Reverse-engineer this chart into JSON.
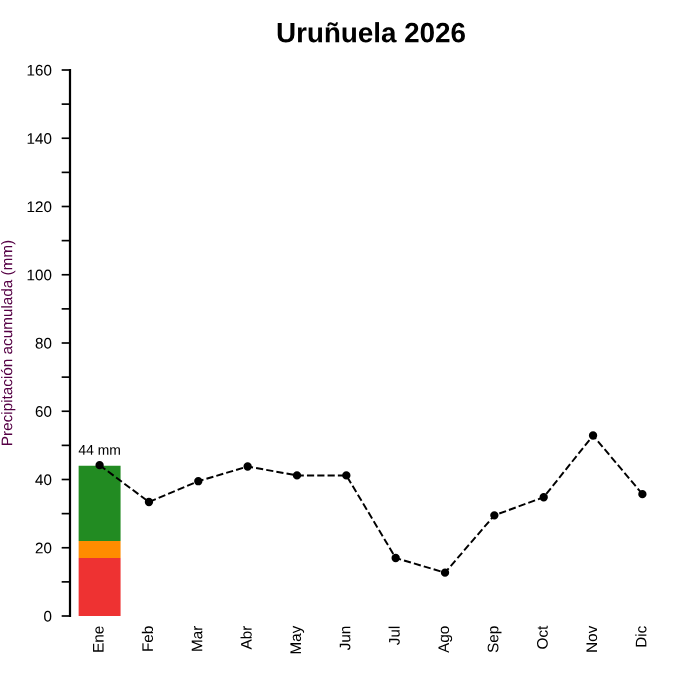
{
  "chart_data": {
    "type": "bar",
    "title": "Uruñuela 2026",
    "ylabel": "Precipitación acumulada (mm)",
    "categories": [
      "Ene",
      "Feb",
      "Mar",
      "Abr",
      "May",
      "Jun",
      "Jul",
      "Ago",
      "Sep",
      "Oct",
      "Nov",
      "Dic"
    ],
    "stacked": true,
    "series": [
      {
        "color": "#ee3232",
        "values": [
          17,
          null,
          null,
          null,
          null,
          null,
          null,
          null,
          null,
          null,
          null,
          null
        ]
      },
      {
        "color": "#ff8c00",
        "values": [
          5,
          null,
          null,
          null,
          null,
          null,
          null,
          null,
          null,
          null,
          null,
          null
        ]
      },
      {
        "color": "#228b22",
        "values": [
          22,
          null,
          null,
          null,
          null,
          null,
          null,
          null,
          null,
          null,
          null,
          null
        ]
      },
      {
        "type": "line",
        "color": "#000000",
        "marker": "circle",
        "line_style": "dashed",
        "values": [
          44.2,
          33.4,
          39.5,
          43.8,
          41.2,
          41.2,
          17.0,
          12.7,
          29.5,
          34.8,
          52.9,
          35.7
        ]
      }
    ],
    "annotations": [
      {
        "text": "44 mm",
        "x": "Ene",
        "y": 44
      }
    ],
    "ylim": [
      0,
      160
    ],
    "yticks": [
      0,
      {
        "value": 10,
        "label": null
      },
      20,
      {
        "value": 30,
        "label": null
      },
      40,
      {
        "value": 50,
        "label": null
      },
      60,
      {
        "value": 70,
        "label": null
      },
      80,
      {
        "value": 90,
        "label": null
      },
      100,
      {
        "value": 110,
        "label": null
      },
      120,
      {
        "value": 130,
        "label": null
      },
      140,
      {
        "value": 150,
        "label": null
      },
      160
    ],
    "grid": false,
    "legend": false
  }
}
